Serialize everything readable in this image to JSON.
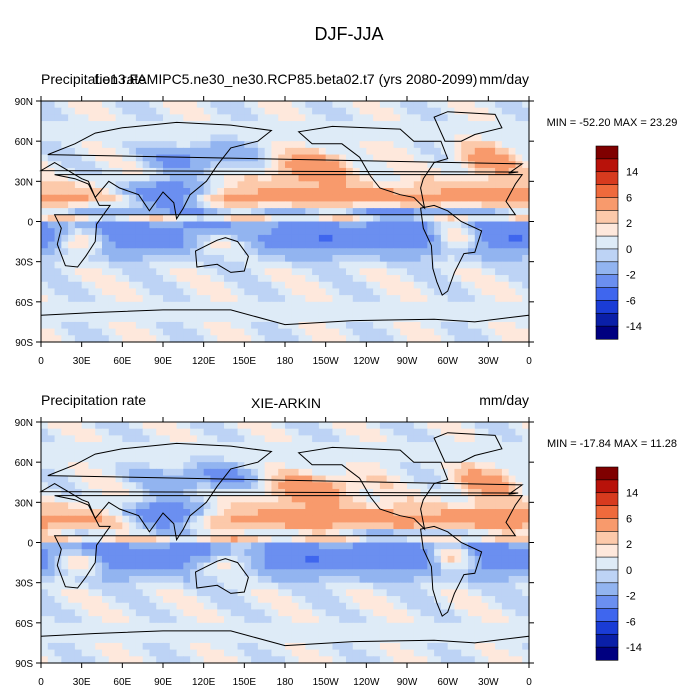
{
  "figure": {
    "title": "DJF-JJA"
  },
  "panels": [
    {
      "left_label": "Precipitation rate",
      "center_label": "f.e13.FAMIPC5.ne30_ne30.RCP85.beta02.t7 (yrs 2080-2099)",
      "units": "mm/day",
      "min_max_text": "MIN = -52.20 MAX =  23.29",
      "min_value": -52.2,
      "max_value": 23.29
    },
    {
      "left_label": "Precipitation rate",
      "center_label": "XIE-ARKIN",
      "units": "mm/day",
      "min_max_text": "MIN = -17.84 MAX =  11.28",
      "min_value": -17.84,
      "max_value": 11.28
    }
  ],
  "axes": {
    "lat_ticks": [
      "90N",
      "60N",
      "30N",
      "0",
      "30S",
      "60S",
      "90S"
    ],
    "lon_ticks": [
      "0",
      "30E",
      "60E",
      "90E",
      "120E",
      "150E",
      "180",
      "150W",
      "120W",
      "90W",
      "60W",
      "30W",
      "0"
    ]
  },
  "colorbar": {
    "labels": [
      "14",
      "6",
      "2",
      "0",
      "-2",
      "-6",
      "-14"
    ],
    "colors": [
      "#7f0000",
      "#b8120a",
      "#d73a1e",
      "#ef6a3c",
      "#f89a6c",
      "#fcc9aa",
      "#fee8dc",
      "#deebf7",
      "#bdd3f5",
      "#92b4f0",
      "#6b8ff0",
      "#3f66ee",
      "#1a3cd6",
      "#0a1fa8",
      "#000080"
    ]
  }
}
